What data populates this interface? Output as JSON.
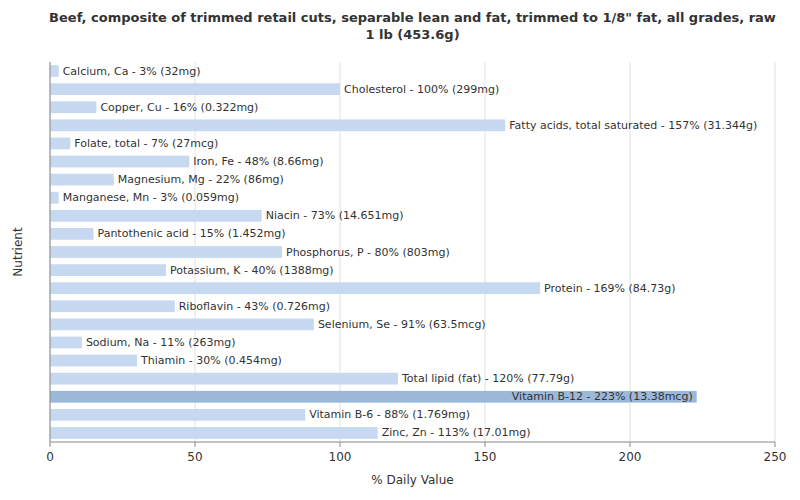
{
  "chart_data": {
    "type": "bar",
    "orientation": "horizontal",
    "title": "Beef, composite of trimmed retail cuts, separable lean and fat, trimmed to 1/8\" fat, all grades, raw\n1 lb (453.6g)",
    "x_label": "% Daily Value",
    "y_label": "Nutrient",
    "categories": [
      "Calcium, Ca - 3% (32mg)",
      "Cholesterol - 100% (299mg)",
      "Copper, Cu - 16% (0.322mg)",
      "Fatty acids, total saturated - 157% (31.344g)",
      "Folate, total - 7% (27mcg)",
      "Iron, Fe - 48% (8.66mg)",
      "Magnesium, Mg - 22% (86mg)",
      "Manganese, Mn - 3% (0.059mg)",
      "Niacin - 73% (14.651mg)",
      "Pantothenic acid - 15% (1.452mg)",
      "Phosphorus, P - 80% (803mg)",
      "Potassium, K - 40% (1388mg)",
      "Protein - 169% (84.73g)",
      "Riboflavin - 43% (0.726mg)",
      "Selenium, Se - 91% (63.5mcg)",
      "Sodium, Na - 11% (263mg)",
      "Thiamin - 30% (0.454mg)",
      "Total lipid (fat) - 120% (77.79g)",
      "Vitamin B-12 - 223% (13.38mcg)",
      "Vitamin B-6 - 88% (1.769mg)",
      "Zinc, Zn - 113% (17.01mg)"
    ],
    "values": [
      3,
      100,
      16,
      157,
      7,
      48,
      22,
      3,
      73,
      15,
      80,
      40,
      169,
      43,
      91,
      11,
      30,
      120,
      223,
      88,
      113
    ],
    "colors": [
      "#c6d9f1",
      "#c6d9f1",
      "#c6d9f1",
      "#c6d9f1",
      "#c6d9f1",
      "#c6d9f1",
      "#c6d9f1",
      "#c6d9f1",
      "#c6d9f1",
      "#c6d9f1",
      "#c6d9f1",
      "#c6d9f1",
      "#c6d9f1",
      "#c6d9f1",
      "#c6d9f1",
      "#c6d9f1",
      "#c6d9f1",
      "#c6d9f1",
      "#9bb8d9",
      "#c6d9f1",
      "#c6d9f1"
    ],
    "xlim": [
      0,
      250
    ],
    "xticks": [
      0,
      50,
      100,
      150,
      200,
      250
    ],
    "grid": true,
    "tick_labels": "x"
  }
}
